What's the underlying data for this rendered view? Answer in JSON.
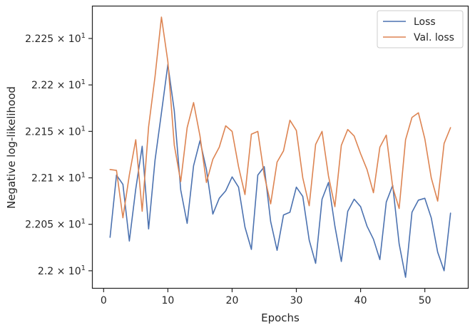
{
  "chart_data": {
    "type": "line",
    "xlabel": "Epochs",
    "ylabel": "Negative log-likelihood",
    "xlim": [
      -1.7,
      56.7
    ],
    "ylim": [
      21.9815,
      22.2845
    ],
    "x_ticks": [
      0,
      10,
      20,
      30,
      40,
      50
    ],
    "y_ticks": [
      {
        "value": 22.0,
        "mantissa": "2.2",
        "base": "10",
        "exp": "1"
      },
      {
        "value": 22.05,
        "mantissa": "2.205",
        "base": "10",
        "exp": "1"
      },
      {
        "value": 22.1,
        "mantissa": "2.21",
        "base": "10",
        "exp": "1"
      },
      {
        "value": 22.15,
        "mantissa": "2.215",
        "base": "10",
        "exp": "1"
      },
      {
        "value": 22.2,
        "mantissa": "2.22",
        "base": "10",
        "exp": "1"
      },
      {
        "value": 22.25,
        "mantissa": "2.225",
        "base": "10",
        "exp": "1"
      }
    ],
    "grid": false,
    "legend_position": "upper right",
    "x": [
      1,
      2,
      3,
      4,
      5,
      6,
      7,
      8,
      9,
      10,
      11,
      12,
      13,
      14,
      15,
      16,
      17,
      18,
      19,
      20,
      21,
      22,
      23,
      24,
      25,
      26,
      27,
      28,
      29,
      30,
      31,
      32,
      33,
      34,
      35,
      36,
      37,
      38,
      39,
      40,
      41,
      42,
      43,
      44,
      45,
      46,
      47,
      48,
      49,
      50,
      51,
      52,
      53,
      54
    ],
    "series": [
      {
        "name": "Loss",
        "color": "#4c72b0",
        "values": [
          22.036,
          22.103,
          22.093,
          22.032,
          22.088,
          22.134,
          22.045,
          22.119,
          22.17,
          22.222,
          22.172,
          22.087,
          22.051,
          22.113,
          22.14,
          22.109,
          22.061,
          22.078,
          22.086,
          22.101,
          22.09,
          22.047,
          22.023,
          22.103,
          22.112,
          22.053,
          22.022,
          22.06,
          22.063,
          22.09,
          22.08,
          22.033,
          22.008,
          22.077,
          22.095,
          22.048,
          22.01,
          22.064,
          22.077,
          22.069,
          22.048,
          22.034,
          22.012,
          22.074,
          22.092,
          22.029,
          21.993,
          22.063,
          22.076,
          22.078,
          22.057,
          22.02,
          22.0,
          22.062
        ]
      },
      {
        "name": "Val. loss",
        "color": "#dd8452",
        "values": [
          22.109,
          22.108,
          22.057,
          22.103,
          22.141,
          22.064,
          22.155,
          22.209,
          22.273,
          22.225,
          22.135,
          22.096,
          22.154,
          22.181,
          22.145,
          22.095,
          22.12,
          22.133,
          22.156,
          22.15,
          22.112,
          22.082,
          22.147,
          22.15,
          22.103,
          22.072,
          22.117,
          22.129,
          22.162,
          22.151,
          22.1,
          22.07,
          22.136,
          22.15,
          22.102,
          22.069,
          22.135,
          22.152,
          22.145,
          22.126,
          22.109,
          22.084,
          22.133,
          22.146,
          22.09,
          22.067,
          22.141,
          22.165,
          22.17,
          22.142,
          22.1,
          22.075,
          22.137,
          22.154
        ]
      }
    ]
  }
}
